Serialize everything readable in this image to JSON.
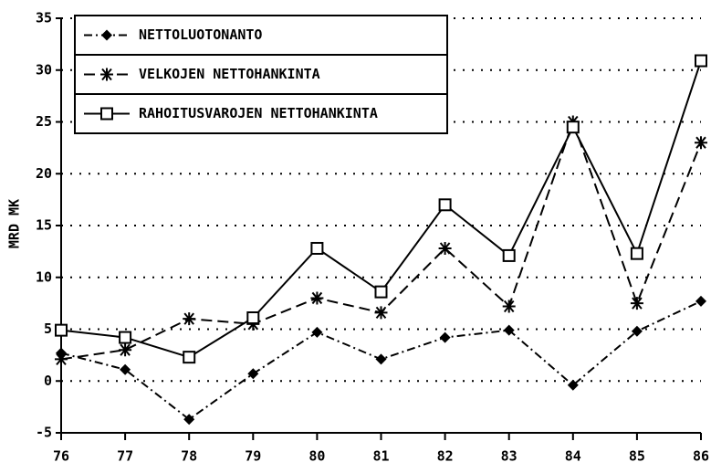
{
  "chart_data": {
    "type": "line",
    "ylabel": "MRD MK",
    "x": [
      76,
      77,
      78,
      79,
      80,
      81,
      82,
      83,
      84,
      85,
      86
    ],
    "xlim": [
      76,
      86
    ],
    "xticks": [
      76,
      77,
      78,
      79,
      80,
      81,
      82,
      83,
      84,
      85,
      86
    ],
    "ylim": [
      -5,
      35
    ],
    "yticks": [
      -5,
      0,
      5,
      10,
      15,
      20,
      25,
      30,
      35
    ],
    "grid": true,
    "legend": "upper left",
    "series": [
      {
        "name": "NETTOLUOTONANTO",
        "color": "#000000",
        "marker": "diamond",
        "linestyle": "dashdot",
        "values": [
          2.7,
          1.1,
          -3.7,
          0.7,
          4.7,
          2.1,
          4.2,
          4.9,
          -0.4,
          4.8,
          7.7
        ]
      },
      {
        "name": "VELKOJEN NETTOHANKINTA",
        "color": "#000000",
        "marker": "asterisk",
        "linestyle": "dashed",
        "values": [
          2.1,
          3.0,
          6.0,
          5.5,
          8.0,
          6.6,
          12.8,
          7.2,
          25.0,
          7.5,
          23.0
        ]
      },
      {
        "name": "RAHOITUSVAROJEN NETTOHANKINTA",
        "color": "#000000",
        "marker": "square",
        "linestyle": "solid",
        "values": [
          4.9,
          4.2,
          2.3,
          6.1,
          12.8,
          8.6,
          17.0,
          12.1,
          24.5,
          12.3,
          30.9
        ]
      }
    ]
  }
}
